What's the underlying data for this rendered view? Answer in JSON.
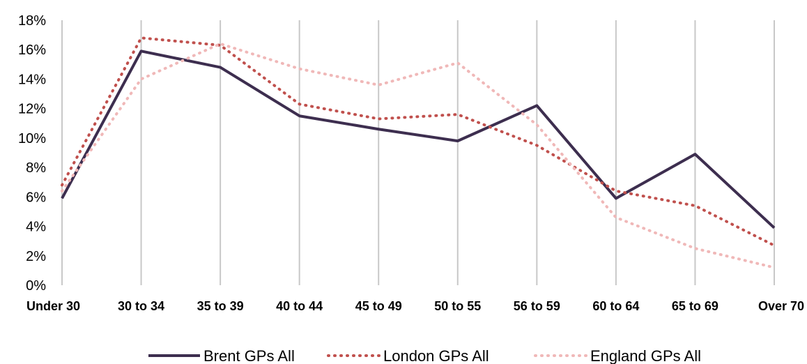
{
  "chart_data": {
    "type": "line",
    "title": "",
    "xlabel": "",
    "ylabel": "",
    "categories": [
      "Under 30",
      "30 to 34",
      "35 to 39",
      "40 to 44",
      "45 to 49",
      "50 to 55",
      "56 to 59",
      "60 to 64",
      "65 to 69",
      "Over 70"
    ],
    "y_ticks": [
      "0%",
      "2%",
      "4%",
      "6%",
      "8%",
      "10%",
      "12%",
      "14%",
      "16%",
      "18%"
    ],
    "ylim": [
      0,
      18
    ],
    "grid": "vertical",
    "legend_position": "bottom",
    "series": [
      {
        "name": "Brent GPs All",
        "style": "solid",
        "color": "#3d2e4f",
        "values": [
          5.9,
          15.9,
          14.8,
          11.5,
          10.6,
          9.8,
          12.2,
          5.9,
          8.9,
          3.9
        ]
      },
      {
        "name": "London GPs All",
        "style": "dotted",
        "color": "#c0504d",
        "values": [
          6.8,
          16.8,
          16.3,
          12.3,
          11.3,
          11.6,
          9.5,
          6.4,
          5.4,
          2.7
        ]
      },
      {
        "name": "England GPs All",
        "style": "dotted",
        "color": "#f0b8b8",
        "values": [
          6.4,
          14.0,
          16.4,
          14.7,
          13.6,
          15.1,
          10.9,
          4.6,
          2.5,
          1.2
        ]
      }
    ]
  }
}
